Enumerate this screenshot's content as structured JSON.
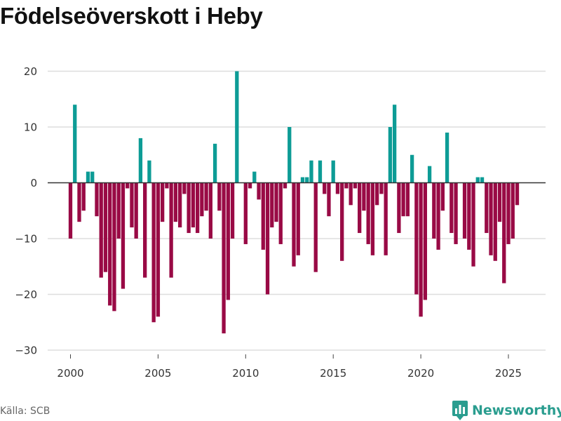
{
  "title": "Födelseöverskott i Heby",
  "source": "Källa: SCB",
  "brand": {
    "name": "Newsworthy",
    "icon": "bar-chart-logo-icon",
    "color": "#2a9d8f"
  },
  "colors": {
    "positive": "#0d9c96",
    "negative": "#990a45",
    "grid": "#dddddd",
    "zero": "#333333"
  },
  "chart_data": {
    "type": "bar",
    "title": "Födelseöverskott i Heby",
    "xlabel": "",
    "ylabel": "",
    "frequency": "quarterly",
    "x_start": "2000-Q1",
    "ylim": [
      -30,
      20
    ],
    "yticks": [
      -30,
      -20,
      -10,
      0,
      10,
      20
    ],
    "xticks": [
      "2000",
      "2005",
      "2010",
      "2015",
      "2020",
      "2025"
    ],
    "grid": true,
    "legend": "none",
    "values": [
      -10,
      14,
      -7,
      -5,
      2,
      2,
      -6,
      -17,
      -16,
      -22,
      -23,
      -10,
      -19,
      -1,
      -8,
      -10,
      8,
      -17,
      4,
      -25,
      -24,
      -7,
      -1,
      -17,
      -7,
      -8,
      -2,
      -9,
      -8,
      -9,
      -6,
      -5,
      -10,
      7,
      -5,
      -27,
      -21,
      -10,
      20,
      0,
      -11,
      -1,
      2,
      -3,
      -12,
      -20,
      -8,
      -7,
      -11,
      -1,
      10,
      -15,
      -13,
      1,
      1,
      4,
      -16,
      4,
      -2,
      -6,
      4,
      -2,
      -14,
      -1,
      -4,
      -1,
      -9,
      -5,
      -11,
      -13,
      -4,
      -2,
      -13,
      10,
      14,
      -9,
      -6,
      -6,
      5,
      -20,
      -24,
      -21,
      3,
      -10,
      -12,
      -5,
      9,
      -9,
      -11,
      0,
      -10,
      -12,
      -15,
      1,
      1,
      -9,
      -13,
      -14,
      -7,
      -18,
      -11,
      -10,
      -4
    ]
  }
}
